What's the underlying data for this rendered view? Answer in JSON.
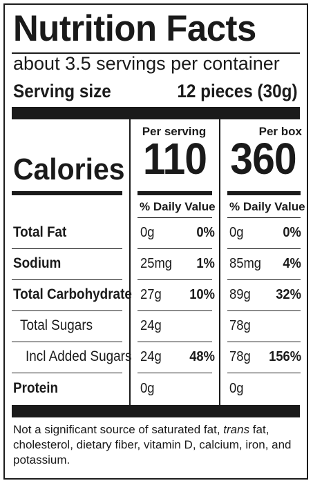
{
  "label": {
    "title": "Nutrition Facts",
    "servings_per_container": "about 3.5 servings per container",
    "serving_size_label": "Serving size",
    "serving_size_value": "12 pieces (30g)",
    "calories_label": "Calories",
    "columns": [
      {
        "header": "Per serving",
        "calories": "110",
        "dv_header": "% Daily Value"
      },
      {
        "header": "Per box",
        "calories": "360",
        "dv_header": "% Daily Value"
      }
    ],
    "nutrients": [
      {
        "name": "Total Fat",
        "values": [
          {
            "amount": "0g",
            "dv": "0%"
          },
          {
            "amount": "0g",
            "dv": "0%"
          }
        ]
      },
      {
        "name": "Sodium",
        "values": [
          {
            "amount": "25mg",
            "dv": "1%"
          },
          {
            "amount": "85mg",
            "dv": "4%"
          }
        ]
      },
      {
        "name": "Total Carbohydrate",
        "values": [
          {
            "amount": "27g",
            "dv": "10%"
          },
          {
            "amount": "89g",
            "dv": "32%"
          }
        ]
      },
      {
        "name": "Total Sugars",
        "values": [
          {
            "amount": "24g",
            "dv": ""
          },
          {
            "amount": "78g",
            "dv": ""
          }
        ]
      },
      {
        "name": "Incl Added Sugars",
        "values": [
          {
            "amount": "24g",
            "dv": "48%"
          },
          {
            "amount": "78g",
            "dv": "156%"
          }
        ]
      },
      {
        "name": "Protein",
        "values": [
          {
            "amount": "0g",
            "dv": ""
          },
          {
            "amount": "0g",
            "dv": ""
          }
        ]
      }
    ],
    "footnote_before": "Not a significant source of saturated fat, ",
    "footnote_italic": "trans",
    "footnote_after": " fat, cholesterol, dietary fiber, vitamin D, calcium, iron, and potassium."
  }
}
